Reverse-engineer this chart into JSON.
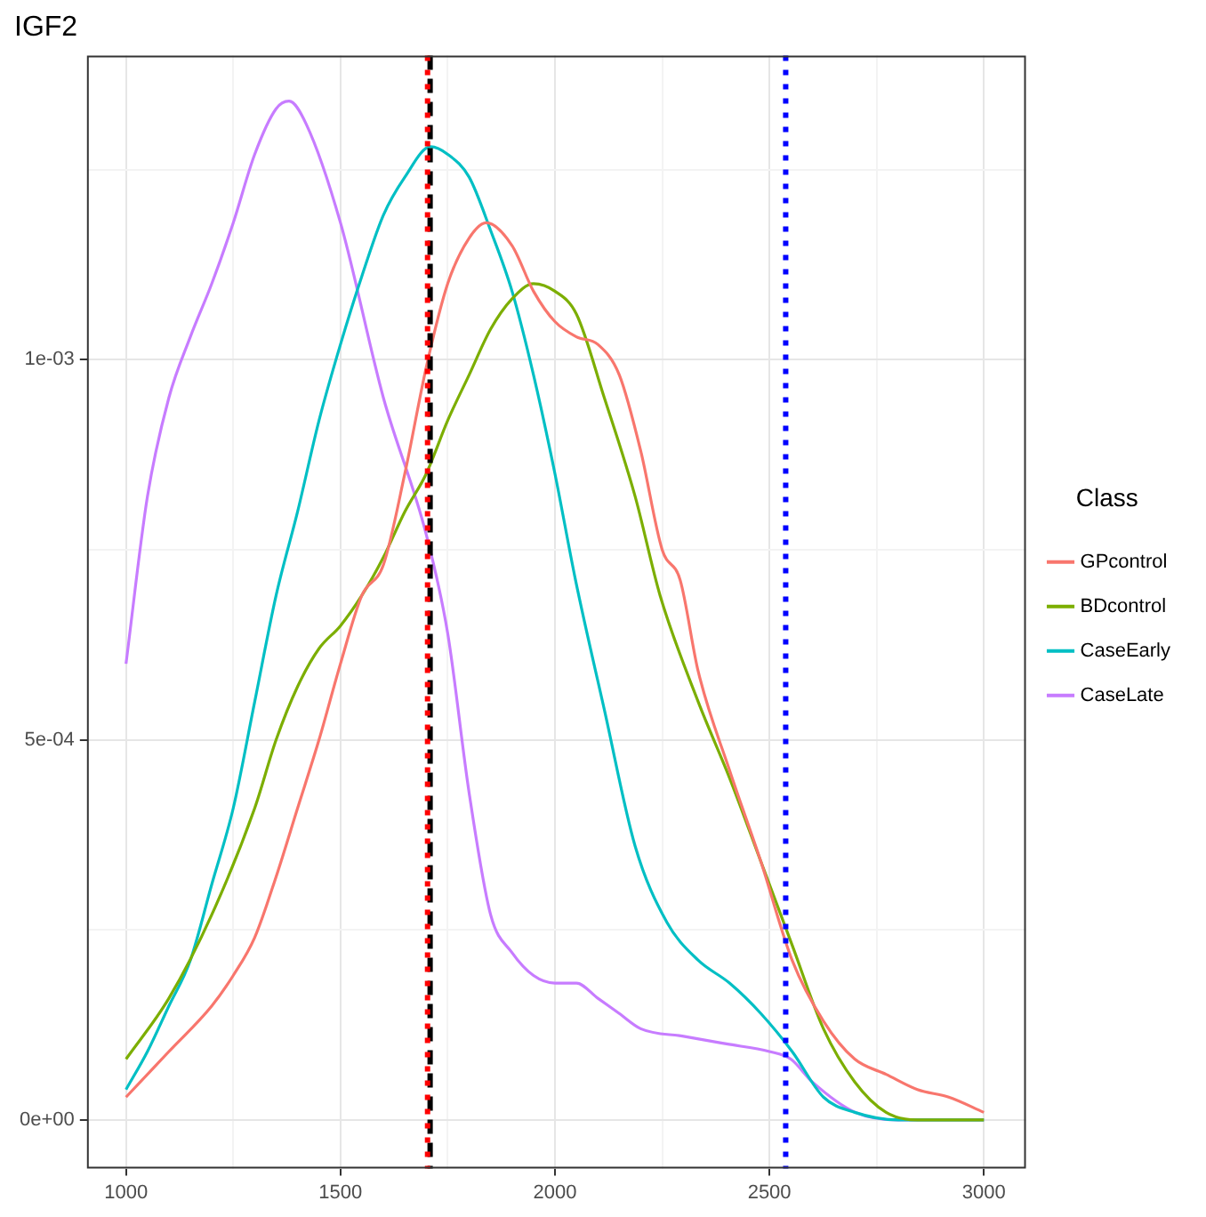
{
  "chart_data": {
    "type": "line",
    "title": "IGF2",
    "legend_title": "Class",
    "legend": "right",
    "grid": true,
    "marker": "none",
    "line_style": "solid",
    "xlim": [
      909,
      3098
    ],
    "ylim": [
      -6.4e-05,
      0.0014
    ],
    "xticks": [
      {
        "value": 1250,
        "label": null
      },
      {
        "value": 1750,
        "label": null
      },
      {
        "value": 2250,
        "label": null
      },
      {
        "value": 2750,
        "label": null
      },
      1000,
      1500,
      2000,
      2500,
      3000
    ],
    "yticks": [
      {
        "value": 0.00025,
        "label": null
      },
      {
        "value": 0.00075,
        "label": null
      },
      {
        "value": 0.00125,
        "label": null
      },
      {
        "value": 0,
        "label": "0e+00"
      },
      {
        "value": 0.0005,
        "label": "5e-04"
      },
      {
        "value": 0.001,
        "label": "1e-03"
      }
    ],
    "ref_lines": [
      {
        "axis": "x",
        "value": 1709,
        "label": null,
        "color": "#000000",
        "line_style": "dashed"
      },
      {
        "axis": "x",
        "value": 1703,
        "label": null,
        "color": "#ff0000",
        "line_style": "dotted"
      },
      {
        "axis": "x",
        "value": 2538,
        "label": null,
        "color": "#0000ff",
        "line_style": "dotted"
      }
    ],
    "series": [
      {
        "name": "GPcontrol",
        "color": "#f8766d",
        "x": [
          1000,
          1100,
          1200,
          1250,
          1300,
          1350,
          1400,
          1450,
          1500,
          1550,
          1600,
          1650,
          1700,
          1750,
          1800,
          1840,
          1900,
          1950,
          2000,
          2050,
          2100,
          2150,
          2200,
          2250,
          2292,
          2334,
          2407,
          2480,
          2553,
          2626,
          2699,
          2772,
          2845,
          2918,
          3000
        ],
        "values": [
          3e-05,
          9e-05,
          0.00015,
          0.00019,
          0.00024,
          0.00032,
          0.00041,
          0.0005,
          0.0006,
          0.00069,
          0.00073,
          0.00085,
          0.00099,
          0.0011,
          0.00116,
          0.00118,
          0.00115,
          0.00109,
          0.00105,
          0.00103,
          0.00102,
          0.00098,
          0.00088,
          0.00075,
          0.00071,
          0.00059,
          0.00046,
          0.00034,
          0.00021,
          0.00013,
          8e-05,
          6e-05,
          4e-05,
          3e-05,
          1e-05
        ]
      },
      {
        "name": "BDcontrol",
        "color": "#7cae00",
        "x": [
          1000,
          1100,
          1200,
          1300,
          1350,
          1400,
          1450,
          1500,
          1550,
          1600,
          1650,
          1700,
          1750,
          1800,
          1850,
          1900,
          1950,
          2000,
          2050,
          2115,
          2187,
          2245,
          2334,
          2407,
          2480,
          2553,
          2626,
          2699,
          2772,
          2845,
          3000
        ],
        "values": [
          8e-05,
          0.00016,
          0.00027,
          0.00041,
          0.0005,
          0.00057,
          0.00062,
          0.00065,
          0.00069,
          0.00074,
          0.0008,
          0.00085,
          0.00092,
          0.00098,
          0.00104,
          0.00108,
          0.0011,
          0.00109,
          0.00106,
          0.00095,
          0.00082,
          0.00069,
          0.00055,
          0.00045,
          0.00034,
          0.00023,
          0.00012,
          5e-05,
          1e-05,
          0,
          0
        ]
      },
      {
        "name": "CaseEarly",
        "color": "#00bfc4",
        "x": [
          1000,
          1050,
          1100,
          1150,
          1200,
          1250,
          1300,
          1350,
          1400,
          1450,
          1500,
          1550,
          1600,
          1650,
          1710,
          1750,
          1800,
          1850,
          1900,
          1950,
          2000,
          2048,
          2115,
          2187,
          2261,
          2334,
          2407,
          2480,
          2553,
          2626,
          2699,
          2800,
          2900,
          3000
        ],
        "values": [
          4e-05,
          9e-05,
          0.00015,
          0.00021,
          0.00031,
          0.00041,
          0.00055,
          0.00069,
          0.0008,
          0.00092,
          0.00102,
          0.00111,
          0.00119,
          0.00124,
          0.00128,
          0.00127,
          0.00124,
          0.00117,
          0.00109,
          0.00098,
          0.00085,
          0.00071,
          0.00054,
          0.00036,
          0.00026,
          0.00021,
          0.00018,
          0.00014,
          9e-05,
          3e-05,
          1e-05,
          0,
          0,
          0
        ]
      },
      {
        "name": "CaseLate",
        "color": "#c77cff",
        "x": [
          1000,
          1050,
          1100,
          1150,
          1200,
          1250,
          1300,
          1350,
          1380,
          1420,
          1500,
          1600,
          1700,
          1750,
          1800,
          1850,
          1900,
          1950,
          2000,
          2050,
          2100,
          2150,
          2200,
          2300,
          2400,
          2500,
          2550,
          2600,
          2700,
          2800,
          2900,
          3000
        ],
        "values": [
          0.0006,
          0.00082,
          0.00095,
          0.00103,
          0.0011,
          0.00118,
          0.00127,
          0.00133,
          0.00134,
          0.00131,
          0.00118,
          0.00095,
          0.00077,
          0.00064,
          0.00043,
          0.00027,
          0.00022,
          0.00019,
          0.00018,
          0.00018,
          0.00016,
          0.00014,
          0.00012,
          0.00011,
          0.0001,
          9e-05,
          8e-05,
          5e-05,
          1e-05,
          0,
          0,
          0
        ]
      }
    ]
  }
}
